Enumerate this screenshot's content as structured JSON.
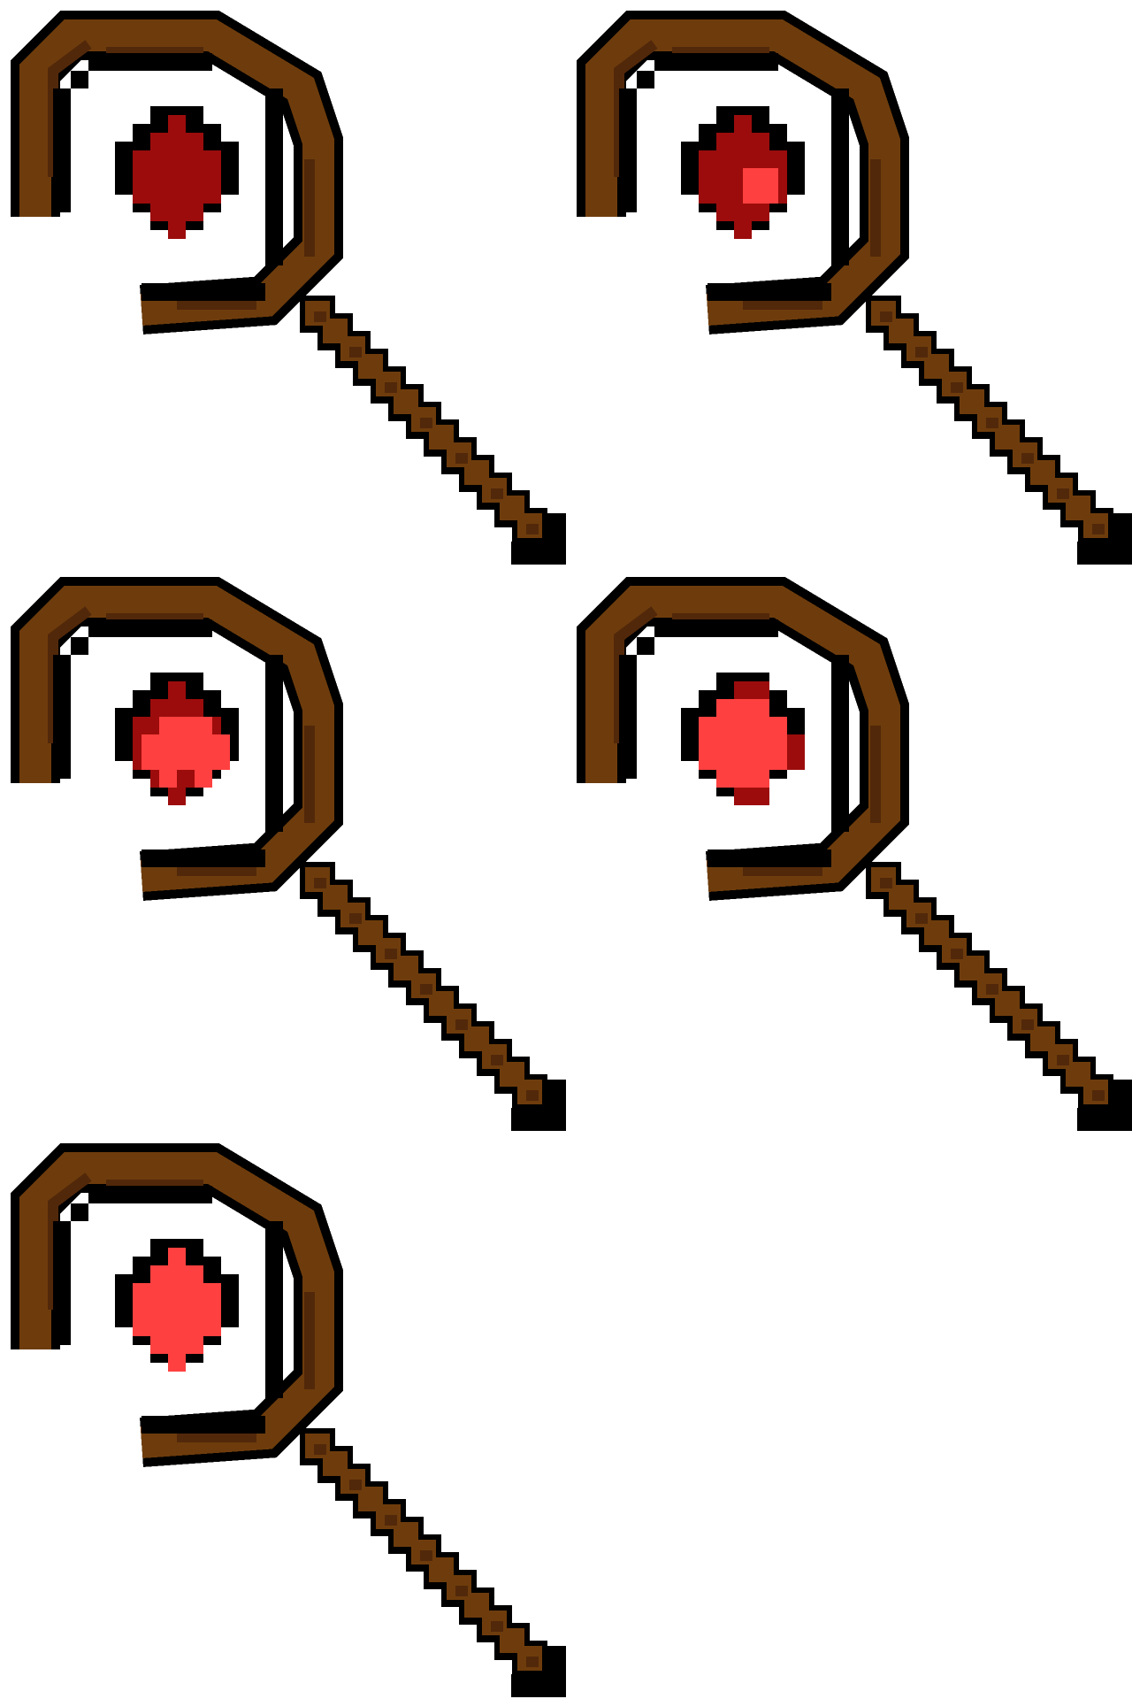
{
  "sprite_sheet": {
    "frames": [
      {
        "glow_level": 0
      },
      {
        "glow_level": 1
      },
      {
        "glow_level": 2
      },
      {
        "glow_level": 3
      },
      {
        "glow_level": 4
      }
    ]
  },
  "colors": {
    "outline": "#000000",
    "wood": "#6e3c0c",
    "wood_dark": "#52280a",
    "gem_dark": "#9c0c0c",
    "gem_light": "#ff4040",
    "background": "#ffffff"
  }
}
